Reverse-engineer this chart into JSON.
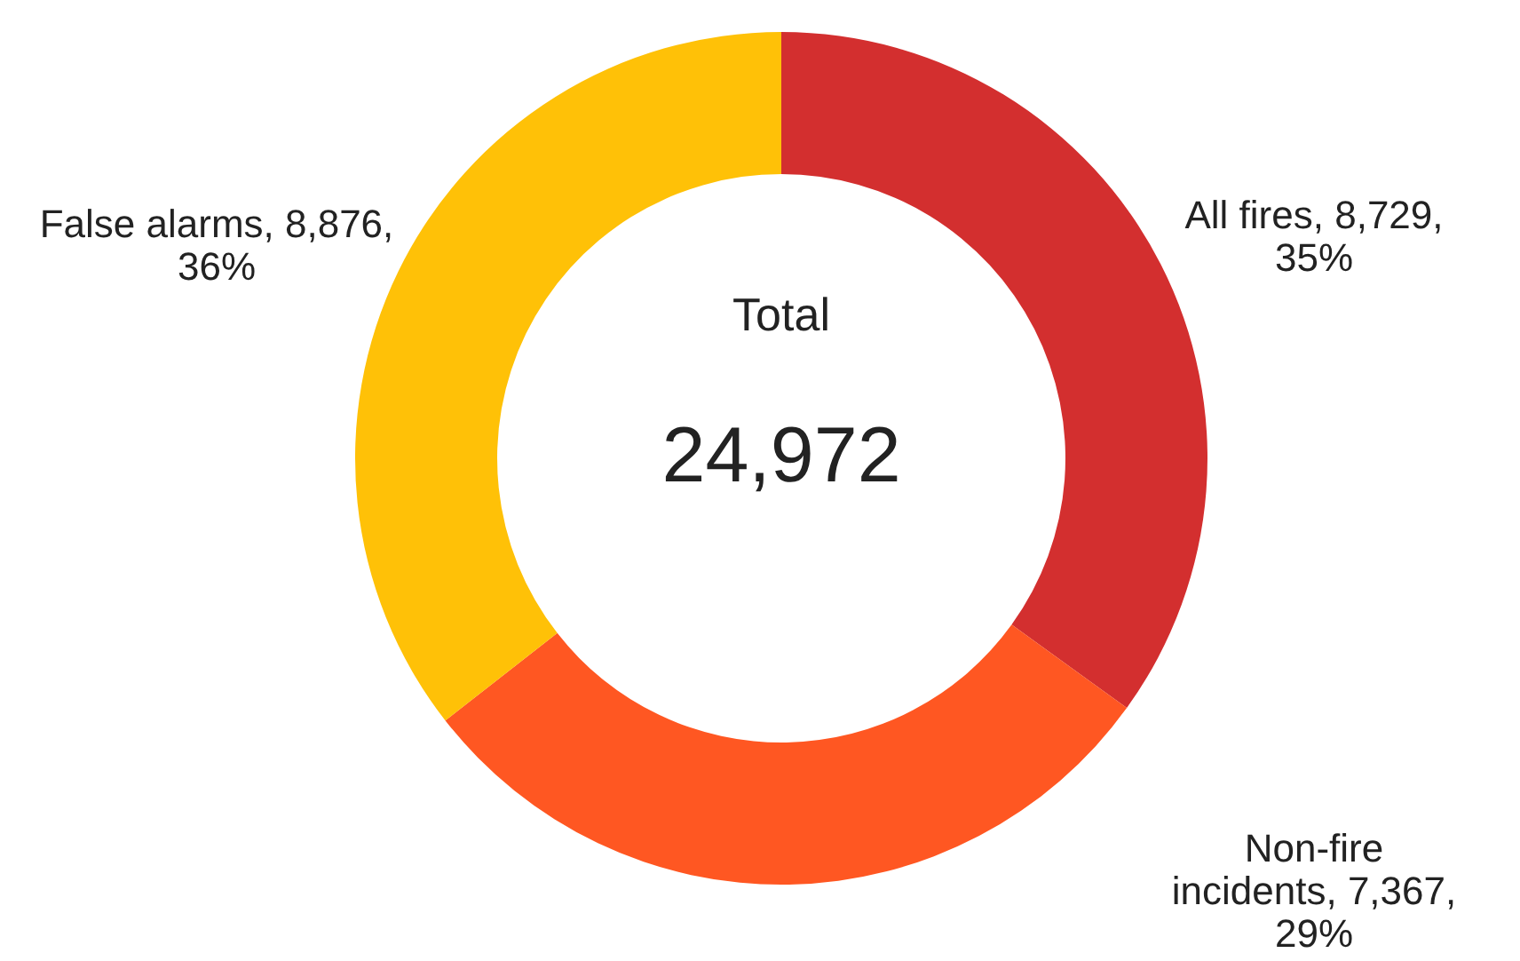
{
  "chart_data": {
    "type": "donut",
    "categories": [
      "All fires",
      "Non-fire incidents",
      "False alarms"
    ],
    "values": [
      8729,
      7367,
      8876
    ],
    "colors": [
      "#d32f2f",
      "#ff5722",
      "#ffc107"
    ],
    "value_labels": [
      "8,729, 35%",
      "7,367, 29%",
      "8,876, 36%"
    ],
    "annotations": [
      "Total",
      "24,972"
    ]
  }
}
